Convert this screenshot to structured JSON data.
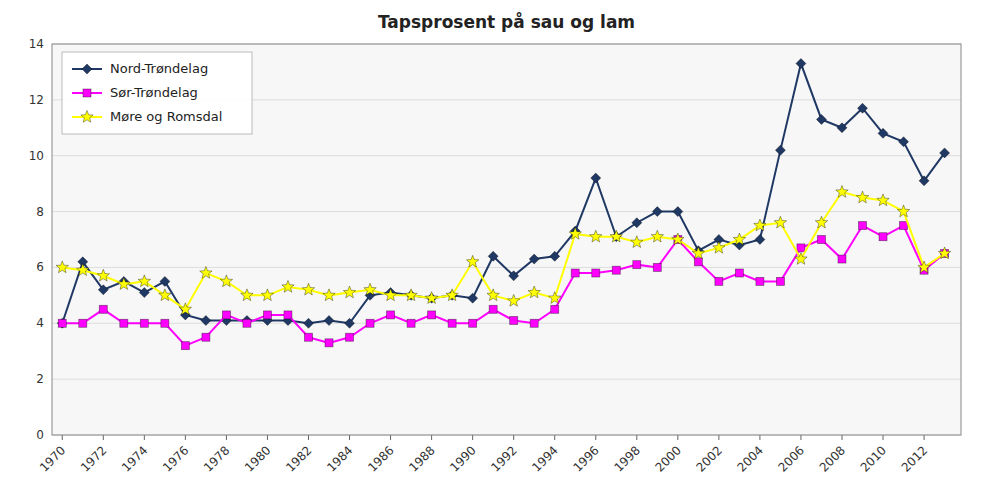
{
  "chart_data": {
    "type": "line",
    "title": "Tapsprosent på sau og lam",
    "x": [
      1970,
      1971,
      1972,
      1973,
      1974,
      1975,
      1976,
      1977,
      1978,
      1979,
      1980,
      1981,
      1982,
      1983,
      1984,
      1985,
      1986,
      1987,
      1988,
      1989,
      1990,
      1991,
      1992,
      1993,
      1994,
      1995,
      1996,
      1997,
      1998,
      1999,
      2000,
      2001,
      2002,
      2003,
      2004,
      2005,
      2006,
      2007,
      2008,
      2009,
      2010,
      2011,
      2012,
      2013
    ],
    "xlim": [
      1969.5,
      2013.8
    ],
    "xticks": [
      1970,
      1972,
      1974,
      1976,
      1978,
      1980,
      1982,
      1984,
      1986,
      1988,
      1990,
      1992,
      1994,
      1996,
      1998,
      2000,
      2002,
      2004,
      2006,
      2008,
      2010,
      2012
    ],
    "ylim": [
      0,
      14
    ],
    "yticks": [
      0,
      2,
      4,
      6,
      8,
      10,
      12,
      14
    ],
    "grid": "y",
    "legend": "upper left",
    "series": [
      {
        "name": "Nord-Trøndelag",
        "color": "#1F3864",
        "marker": "diamond",
        "values": [
          4.0,
          6.2,
          5.2,
          5.5,
          5.1,
          5.5,
          4.3,
          4.1,
          4.1,
          4.1,
          4.1,
          4.1,
          4.0,
          4.1,
          4.0,
          5.0,
          5.1,
          5.0,
          4.9,
          5.0,
          4.9,
          6.4,
          5.7,
          6.3,
          6.4,
          7.3,
          9.2,
          7.1,
          7.6,
          8.0,
          8.0,
          6.6,
          7.0,
          6.8,
          7.0,
          10.2,
          13.3,
          11.3,
          11.0,
          11.7,
          10.8,
          10.5,
          9.1,
          10.1
        ]
      },
      {
        "name": "Sør-Trøndelag",
        "color": "#FF00FF",
        "marker": "square",
        "values": [
          4.0,
          4.0,
          4.5,
          4.0,
          4.0,
          4.0,
          3.2,
          3.5,
          4.3,
          4.0,
          4.3,
          4.3,
          3.5,
          3.3,
          3.5,
          4.0,
          4.3,
          4.0,
          4.3,
          4.0,
          4.0,
          4.5,
          4.1,
          4.0,
          4.5,
          5.8,
          5.8,
          5.9,
          6.1,
          6.0,
          7.0,
          6.2,
          5.5,
          5.8,
          5.5,
          5.5,
          6.7,
          7.0,
          6.3,
          7.5,
          7.1,
          7.5,
          5.9,
          6.5
        ]
      },
      {
        "name": "Møre og Romsdal",
        "color": "#FFFF00",
        "marker": "star",
        "values": [
          6.0,
          5.9,
          5.7,
          5.4,
          5.5,
          5.0,
          4.5,
          5.8,
          5.5,
          5.0,
          5.0,
          5.3,
          5.2,
          5.0,
          5.1,
          5.2,
          5.0,
          5.0,
          4.9,
          5.0,
          6.2,
          5.0,
          4.8,
          5.1,
          4.9,
          7.2,
          7.1,
          7.1,
          6.9,
          7.1,
          7.0,
          6.5,
          6.7,
          7.0,
          7.5,
          7.6,
          6.3,
          7.6,
          8.7,
          8.5,
          8.4,
          8.0,
          6.0,
          6.5
        ]
      }
    ]
  }
}
